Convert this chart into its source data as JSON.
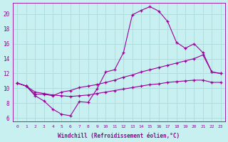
{
  "xlabel": "Windchill (Refroidissement éolien,°C)",
  "bg_color": "#c8f0f0",
  "line_color": "#990099",
  "grid_color": "#b0dede",
  "x_ticks": [
    0,
    1,
    2,
    3,
    4,
    5,
    6,
    7,
    8,
    9,
    10,
    11,
    12,
    13,
    14,
    15,
    16,
    17,
    18,
    19,
    20,
    21,
    22,
    23
  ],
  "y_ticks": [
    6,
    8,
    10,
    12,
    14,
    16,
    18,
    20
  ],
  "ylim": [
    5.5,
    21.5
  ],
  "xlim": [
    -0.5,
    23.5
  ],
  "curve1_x": [
    0,
    1,
    2,
    3,
    4,
    5,
    6,
    7,
    8,
    9,
    10,
    11,
    12,
    13,
    14,
    15,
    16,
    17,
    18,
    19,
    20,
    21,
    22,
    23
  ],
  "curve1_y": [
    10.7,
    10.3,
    9.0,
    8.3,
    7.2,
    6.5,
    6.3,
    8.2,
    8.1,
    9.9,
    12.2,
    12.5,
    14.8,
    19.9,
    20.5,
    21.0,
    20.4,
    19.0,
    16.2,
    15.4,
    16.0,
    14.8,
    12.2,
    12.0
  ],
  "curve2_x": [
    0,
    1,
    2,
    3,
    4,
    5,
    6,
    7,
    8,
    9,
    10,
    11,
    12,
    13,
    14,
    15,
    16,
    17,
    18,
    19,
    20,
    21,
    22,
    23
  ],
  "curve2_y": [
    10.7,
    10.3,
    9.2,
    9.2,
    9.0,
    9.5,
    9.7,
    10.1,
    10.3,
    10.5,
    10.8,
    11.1,
    11.5,
    11.8,
    12.2,
    12.5,
    12.8,
    13.1,
    13.4,
    13.7,
    14.0,
    14.5,
    12.2,
    12.0
  ],
  "curve3_x": [
    0,
    1,
    2,
    3,
    4,
    5,
    6,
    7,
    8,
    9,
    10,
    11,
    12,
    13,
    14,
    15,
    16,
    17,
    18,
    19,
    20,
    21,
    22,
    23
  ],
  "curve3_y": [
    10.7,
    10.3,
    9.5,
    9.3,
    9.1,
    9.0,
    8.9,
    9.0,
    9.1,
    9.3,
    9.5,
    9.7,
    9.9,
    10.1,
    10.3,
    10.5,
    10.6,
    10.8,
    10.9,
    11.0,
    11.1,
    11.1,
    10.8,
    10.8
  ]
}
